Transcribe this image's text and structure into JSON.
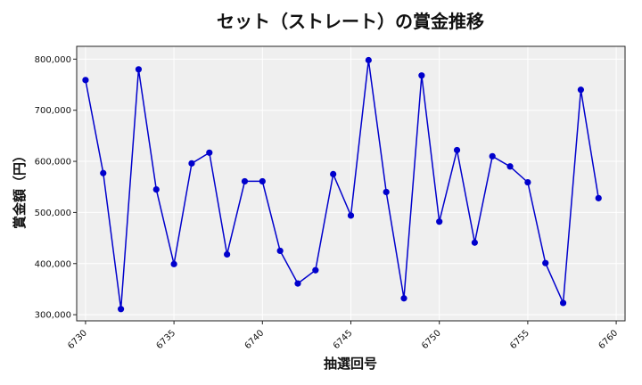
{
  "chart_data": {
    "type": "line",
    "title": "セット（ストレート）の賞金推移",
    "xlabel": "抽選回号",
    "ylabel": "賞金額（円）",
    "xlim": [
      6729.5,
      6760.5
    ],
    "ylim": [
      288000,
      825000
    ],
    "x_ticks": [
      6730,
      6735,
      6740,
      6745,
      6750,
      6755,
      6760
    ],
    "y_ticks": [
      300000,
      400000,
      500000,
      600000,
      700000,
      800000
    ],
    "y_tick_labels": [
      "300,000",
      "400,000",
      "500,000",
      "600,000",
      "700,000",
      "800,000"
    ],
    "grid": true,
    "series_color": "#0000cc",
    "background": "#efefef",
    "x": [
      6730,
      6731,
      6732,
      6733,
      6734,
      6735,
      6736,
      6737,
      6738,
      6739,
      6740,
      6741,
      6742,
      6743,
      6744,
      6745,
      6746,
      6747,
      6748,
      6749,
      6750,
      6751,
      6752,
      6753,
      6754,
      6755,
      6756,
      6757,
      6758,
      6759
    ],
    "values": [
      759000,
      577000,
      311000,
      780000,
      545000,
      399000,
      596000,
      617000,
      418000,
      561000,
      561000,
      425000,
      361000,
      387000,
      575000,
      494000,
      798000,
      540000,
      332000,
      768000,
      482000,
      622000,
      441000,
      610000,
      590000,
      559000,
      401000,
      323000,
      740000,
      528000
    ]
  }
}
